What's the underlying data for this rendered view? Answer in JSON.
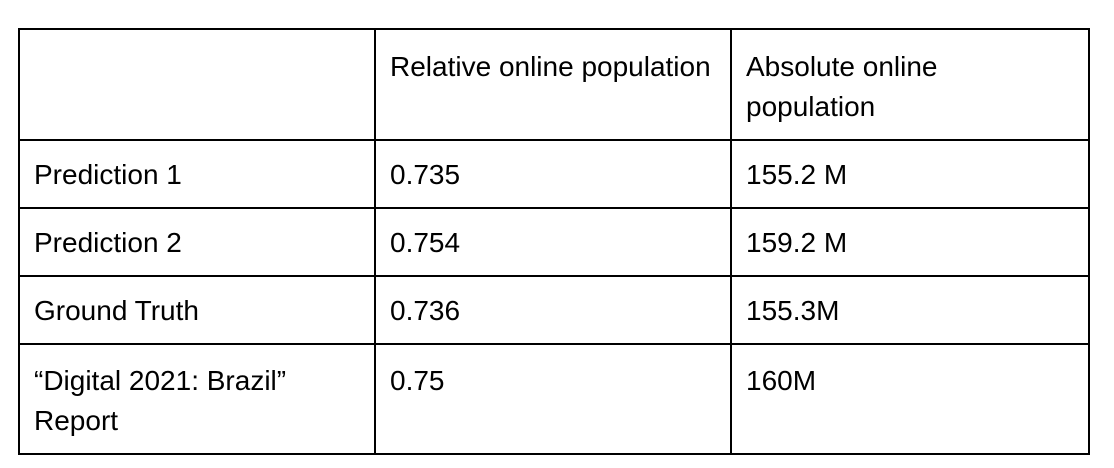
{
  "table": {
    "headers": [
      "",
      "Relative online population",
      "Absolute online population"
    ],
    "rows": [
      {
        "label": "Prediction 1",
        "relative": "0.735",
        "absolute": "155.2 M"
      },
      {
        "label": "Prediction 2",
        "relative": "0.754",
        "absolute": "159.2 M"
      },
      {
        "label": "Ground Truth",
        "relative": "0.736",
        "absolute": "155.3M"
      },
      {
        "label": "“Digital 2021: Brazil” Report",
        "relative": "0.75",
        "absolute": "160M"
      }
    ]
  }
}
